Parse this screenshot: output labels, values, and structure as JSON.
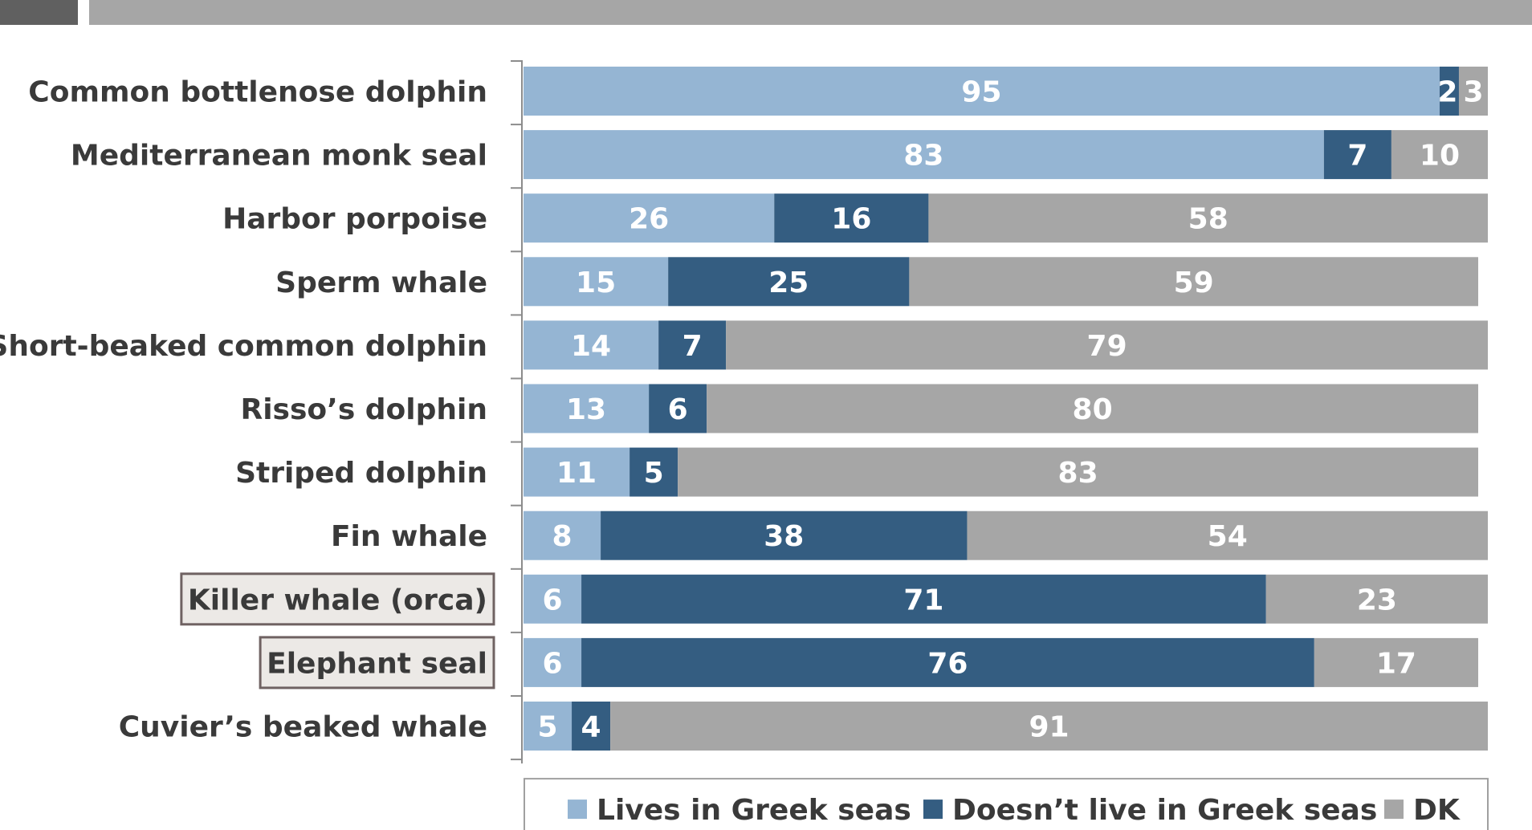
{
  "colors": {
    "lives": "#95b5d3",
    "doesnt": "#345d81",
    "dk": "#a6a6a6",
    "header_dark": "#606060",
    "header_light": "#a6a6a6",
    "axis": "#8c8c8c"
  },
  "chart_data": {
    "type": "bar",
    "orientation": "horizontal",
    "stacked": true,
    "categories": [
      "Common bottlenose dolphin",
      "Mediterranean monk seal",
      "Harbor porpoise",
      "Sperm whale",
      "Short-beaked common dolphin",
      "Risso’s dolphin",
      "Striped dolphin",
      "Fin whale",
      "Killer whale (orca)",
      "Elephant seal",
      "Cuvier’s beaked whale"
    ],
    "highlighted_categories": [
      "Killer whale (orca)",
      "Elephant seal"
    ],
    "series": [
      {
        "name": "Lives in Greek seas",
        "color": "#95b5d3",
        "values": [
          95,
          83,
          26,
          15,
          14,
          13,
          11,
          8,
          6,
          6,
          5
        ]
      },
      {
        "name": "Doesn’t live in Greek seas",
        "color": "#345d81",
        "values": [
          2,
          7,
          16,
          25,
          7,
          6,
          5,
          38,
          71,
          76,
          4
        ]
      },
      {
        "name": "DK",
        "color": "#a6a6a6",
        "values": [
          3,
          10,
          58,
          59,
          79,
          80,
          83,
          54,
          23,
          17,
          91
        ]
      }
    ],
    "legend_position": "bottom",
    "grid": false
  }
}
